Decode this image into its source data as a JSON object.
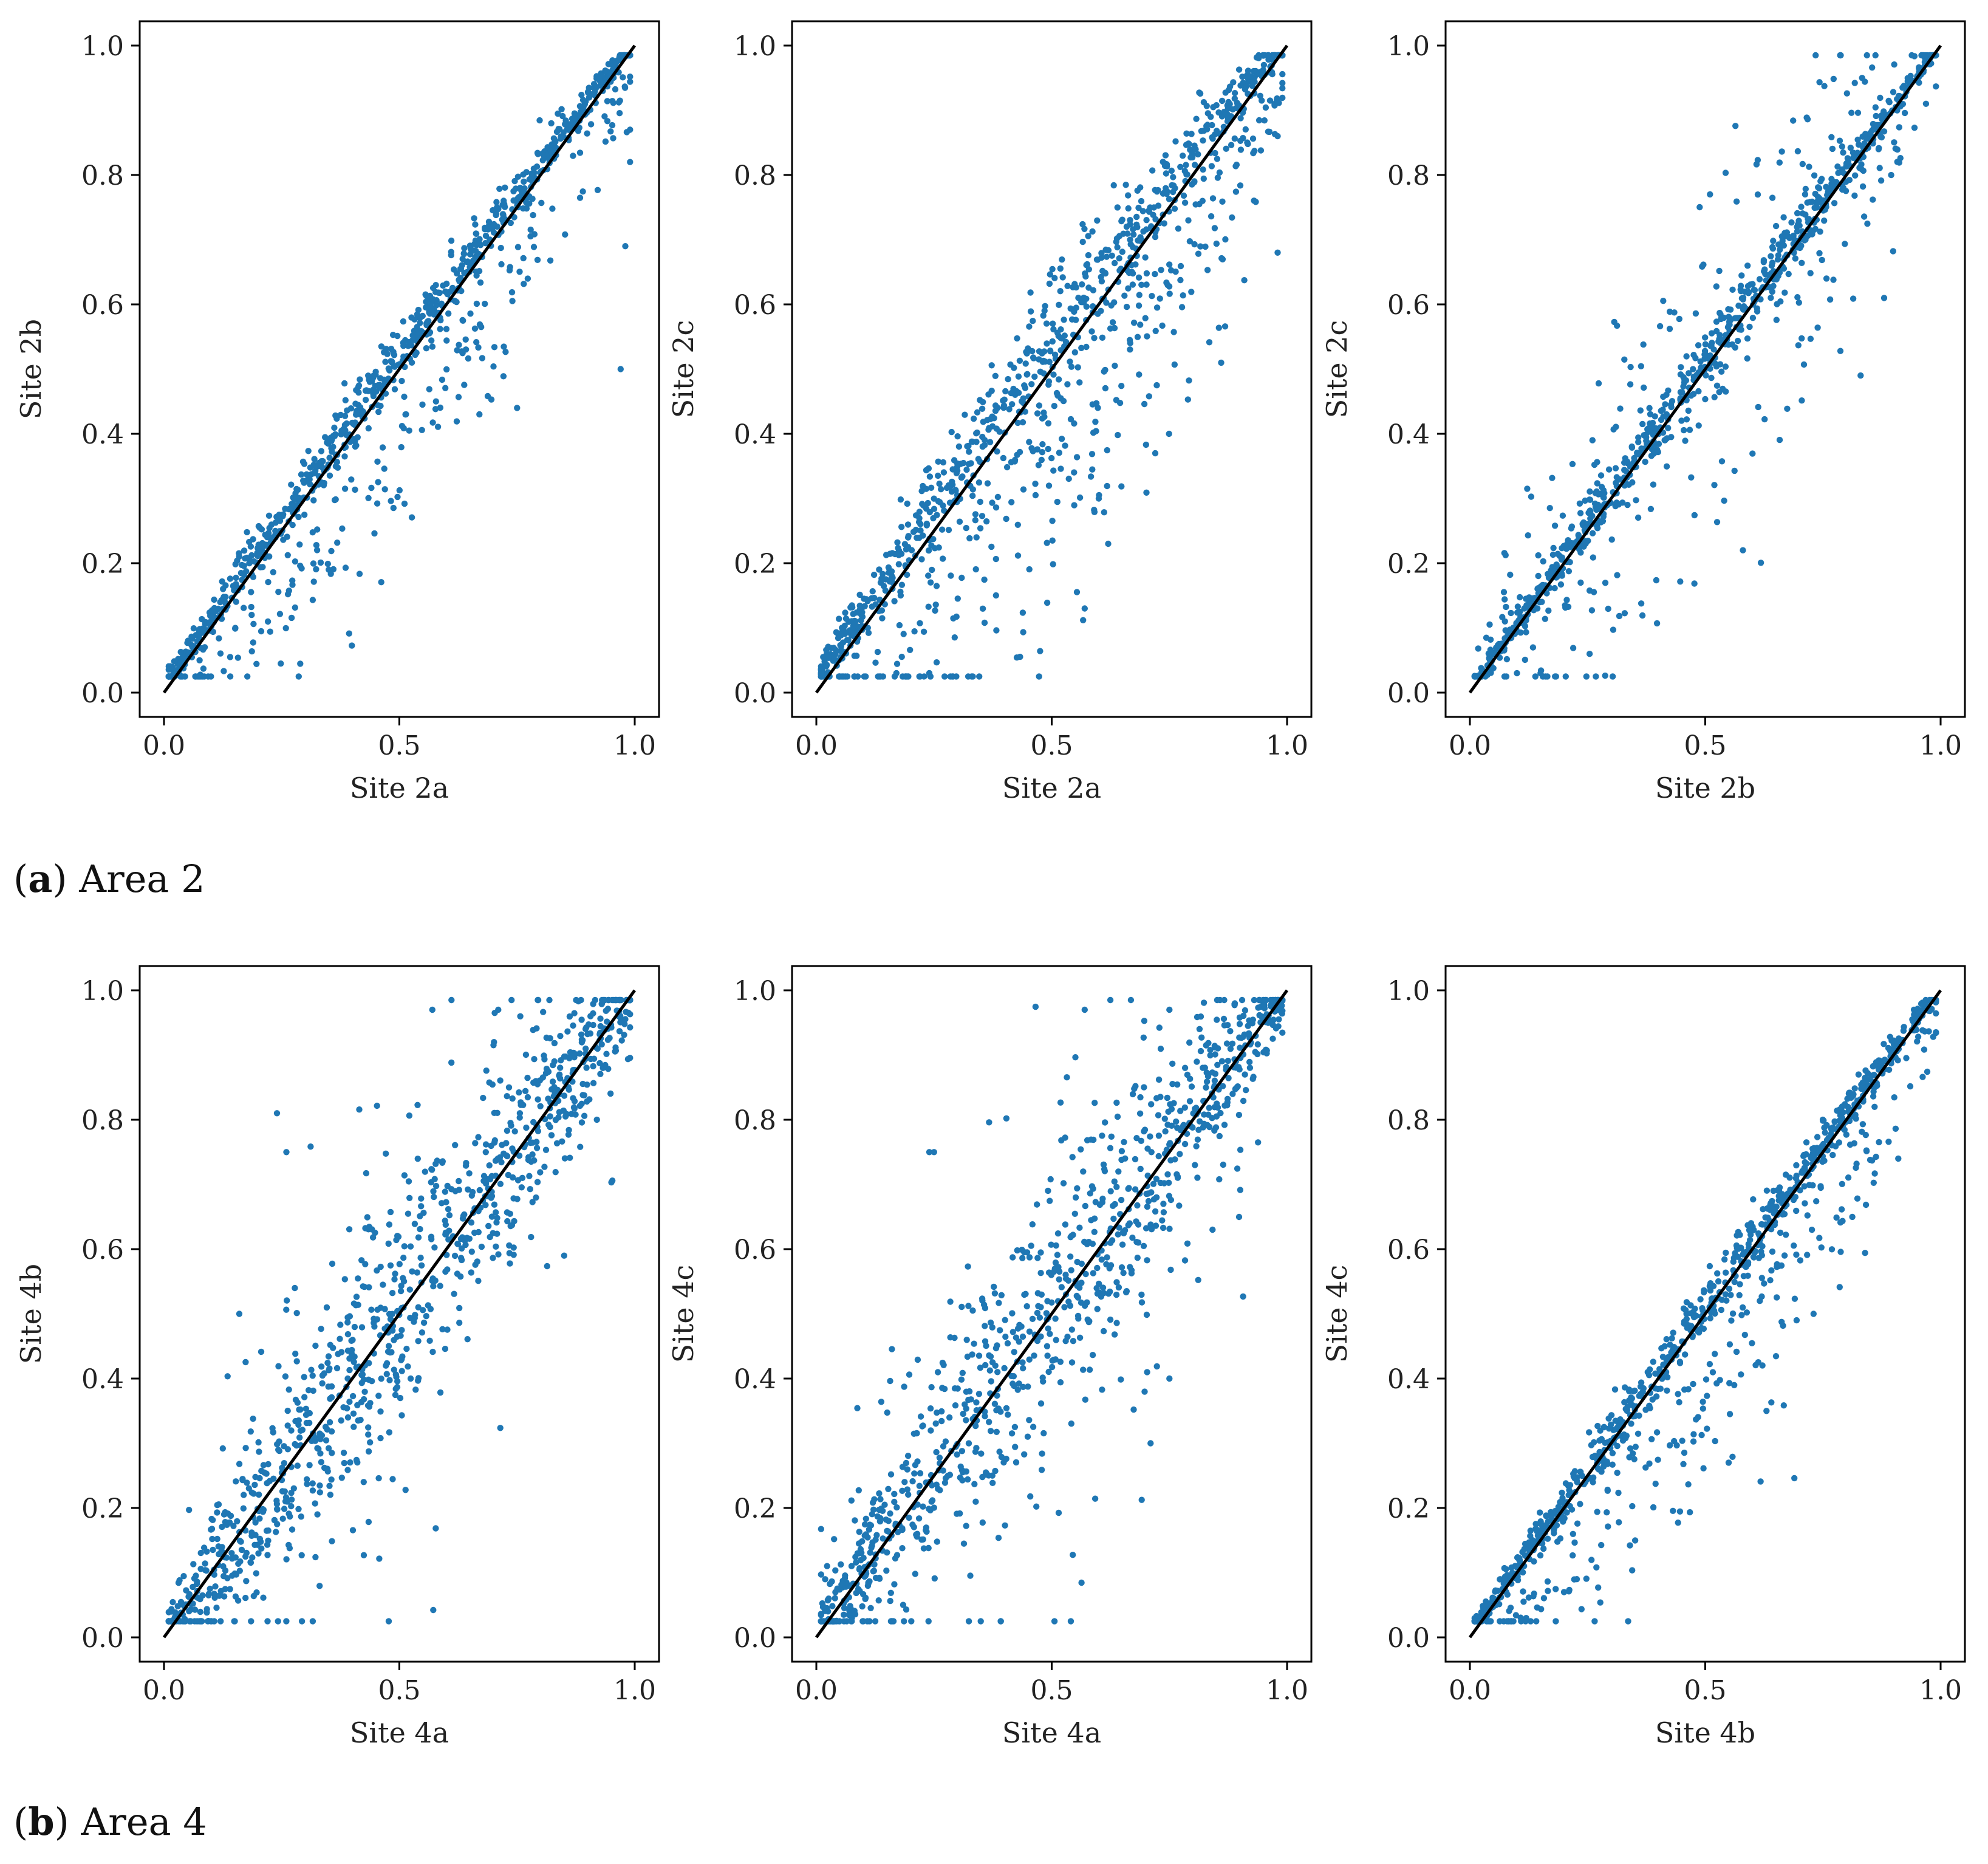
{
  "colors": {
    "points": "#1f77b4",
    "line": "#000000",
    "axes": "#000000",
    "text": "#222222"
  },
  "captions": [
    {
      "letter": "a",
      "text": "Area 2"
    },
    {
      "letter": "b",
      "text": "Area 4"
    }
  ],
  "chart_data": [
    {
      "type": "scatter",
      "group": "a",
      "xlabel": "Site 2a",
      "ylabel": "Site 2b",
      "xlim": [
        0,
        1
      ],
      "ylim": [
        0,
        1
      ],
      "xticks": [
        0,
        0.5,
        1
      ],
      "xtick_labels": [
        "0.0",
        "0.5",
        "1.0"
      ],
      "yticks": [
        0,
        0.2,
        0.4,
        0.6,
        0.8,
        1
      ],
      "ytick_labels": [
        "0.0",
        "0.2",
        "0.4",
        "0.6",
        "0.8",
        "1.0"
      ],
      "reference_line": [
        [
          0,
          0
        ],
        [
          1,
          1
        ]
      ],
      "n_points": 1000,
      "seed": 11,
      "spread": 0.02,
      "bias": 0.02,
      "outlier_rate": 0.2,
      "outlier_scale": 0.08,
      "outlier_side": "below",
      "outliers": [
        [
          0.97,
          0.5
        ],
        [
          0.98,
          0.69
        ],
        [
          0.75,
          0.44
        ],
        [
          0.99,
          0.82
        ],
        [
          0.99,
          0.87
        ],
        [
          0.35,
          0.19
        ],
        [
          0.67,
          0.43
        ]
      ]
    },
    {
      "type": "scatter",
      "group": "a",
      "xlabel": "Site 2a",
      "ylabel": "Site 2c",
      "xlim": [
        0,
        1
      ],
      "ylim": [
        0,
        1
      ],
      "xticks": [
        0,
        0.5,
        1
      ],
      "xtick_labels": [
        "0.0",
        "0.5",
        "1.0"
      ],
      "yticks": [
        0,
        0.2,
        0.4,
        0.6,
        0.8,
        1
      ],
      "ytick_labels": [
        "0.0",
        "0.2",
        "0.4",
        "0.6",
        "0.8",
        "1.0"
      ],
      "reference_line": [
        [
          0,
          0
        ],
        [
          1,
          1
        ]
      ],
      "n_points": 1000,
      "seed": 23,
      "spread": 0.035,
      "bias": 0.04,
      "outlier_rate": 0.25,
      "outlier_scale": 0.13,
      "outlier_side": "below",
      "outliers": [
        [
          0.57,
          0.13
        ],
        [
          0.62,
          0.23
        ],
        [
          0.6,
          0.3
        ],
        [
          0.72,
          0.37
        ],
        [
          0.86,
          0.51
        ],
        [
          0.98,
          0.68
        ],
        [
          0.98,
          0.86
        ],
        [
          0.17,
          0.03
        ],
        [
          0.24,
          0.03
        ]
      ]
    },
    {
      "type": "scatter",
      "group": "a",
      "xlabel": "Site 2b",
      "ylabel": "Site 2c",
      "xlim": [
        0,
        1
      ],
      "ylim": [
        0,
        1
      ],
      "xticks": [
        0,
        0.5,
        1
      ],
      "xtick_labels": [
        "0.0",
        "0.5",
        "1.0"
      ],
      "yticks": [
        0,
        0.2,
        0.4,
        0.6,
        0.8,
        1
      ],
      "ytick_labels": [
        "0.0",
        "0.2",
        "0.4",
        "0.6",
        "0.8",
        "1.0"
      ],
      "reference_line": [
        [
          0,
          0
        ],
        [
          1,
          1
        ]
      ],
      "n_points": 1000,
      "seed": 37,
      "spread": 0.018,
      "bias": 0.01,
      "outlier_rate": 0.2,
      "outlier_scale": 0.1,
      "outlier_side": "both",
      "outliers": [
        [
          0.51,
          0.77
        ],
        [
          0.83,
          0.49
        ],
        [
          0.88,
          0.61
        ],
        [
          0.58,
          0.22
        ],
        [
          0.1,
          0.03
        ],
        [
          0.15,
          0.03
        ]
      ]
    },
    {
      "type": "scatter",
      "group": "b",
      "xlabel": "Site 4a",
      "ylabel": "Site 4b",
      "xlim": [
        0,
        1
      ],
      "ylim": [
        0,
        1
      ],
      "xticks": [
        0,
        0.5,
        1
      ],
      "xtick_labels": [
        "0.0",
        "0.5",
        "1.0"
      ],
      "yticks": [
        0,
        0.2,
        0.4,
        0.6,
        0.8,
        1
      ],
      "ytick_labels": [
        "0.0",
        "0.2",
        "0.4",
        "0.6",
        "0.8",
        "1.0"
      ],
      "reference_line": [
        [
          0,
          0
        ],
        [
          1,
          1
        ]
      ],
      "n_points": 1000,
      "seed": 51,
      "spread": 0.07,
      "bias": 0.0,
      "outlier_rate": 0.12,
      "outlier_scale": 0.16,
      "outlier_side": "both",
      "outliers": [
        [
          0.24,
          0.81
        ],
        [
          0.26,
          0.75
        ],
        [
          0.57,
          0.97
        ],
        [
          0.71,
          0.97
        ],
        [
          0.85,
          0.59
        ],
        [
          0.16,
          0.5
        ]
      ]
    },
    {
      "type": "scatter",
      "group": "b",
      "xlabel": "Site 4a",
      "ylabel": "Site 4c",
      "xlim": [
        0,
        1
      ],
      "ylim": [
        0,
        1
      ],
      "xticks": [
        0,
        0.5,
        1
      ],
      "xtick_labels": [
        "0.0",
        "0.5",
        "1.0"
      ],
      "yticks": [
        0,
        0.2,
        0.4,
        0.6,
        0.8,
        1
      ],
      "ytick_labels": [
        "0.0",
        "0.2",
        "0.4",
        "0.6",
        "0.8",
        "1.0"
      ],
      "reference_line": [
        [
          0,
          0
        ],
        [
          1,
          1
        ]
      ],
      "n_points": 1000,
      "seed": 67,
      "spread": 0.07,
      "bias": 0.01,
      "outlier_rate": 0.12,
      "outlier_scale": 0.16,
      "outlier_side": "both",
      "outliers": [
        [
          0.24,
          0.75
        ],
        [
          0.25,
          0.75
        ],
        [
          0.57,
          0.97
        ],
        [
          0.71,
          0.3
        ],
        [
          0.75,
          0.97
        ],
        [
          0.75,
          0.4
        ]
      ]
    },
    {
      "type": "scatter",
      "group": "b",
      "xlabel": "Site 4b",
      "ylabel": "Site 4c",
      "xlim": [
        0,
        1
      ],
      "ylim": [
        0,
        1
      ],
      "xticks": [
        0,
        0.5,
        1
      ],
      "xtick_labels": [
        "0.0",
        "0.5",
        "1.0"
      ],
      "yticks": [
        0,
        0.2,
        0.4,
        0.6,
        0.8,
        1
      ],
      "ytick_labels": [
        "0.0",
        "0.2",
        "0.4",
        "0.6",
        "0.8",
        "1.0"
      ],
      "reference_line": [
        [
          0,
          0
        ],
        [
          1,
          1
        ]
      ],
      "n_points": 1000,
      "seed": 79,
      "spread": 0.018,
      "bias": 0.01,
      "outlier_rate": 0.2,
      "outlier_scale": 0.09,
      "outlier_side": "below",
      "outliers": [
        [
          0.73,
          0.5
        ],
        [
          0.63,
          0.35
        ],
        [
          0.2,
          0.07
        ],
        [
          0.91,
          0.74
        ]
      ]
    }
  ]
}
